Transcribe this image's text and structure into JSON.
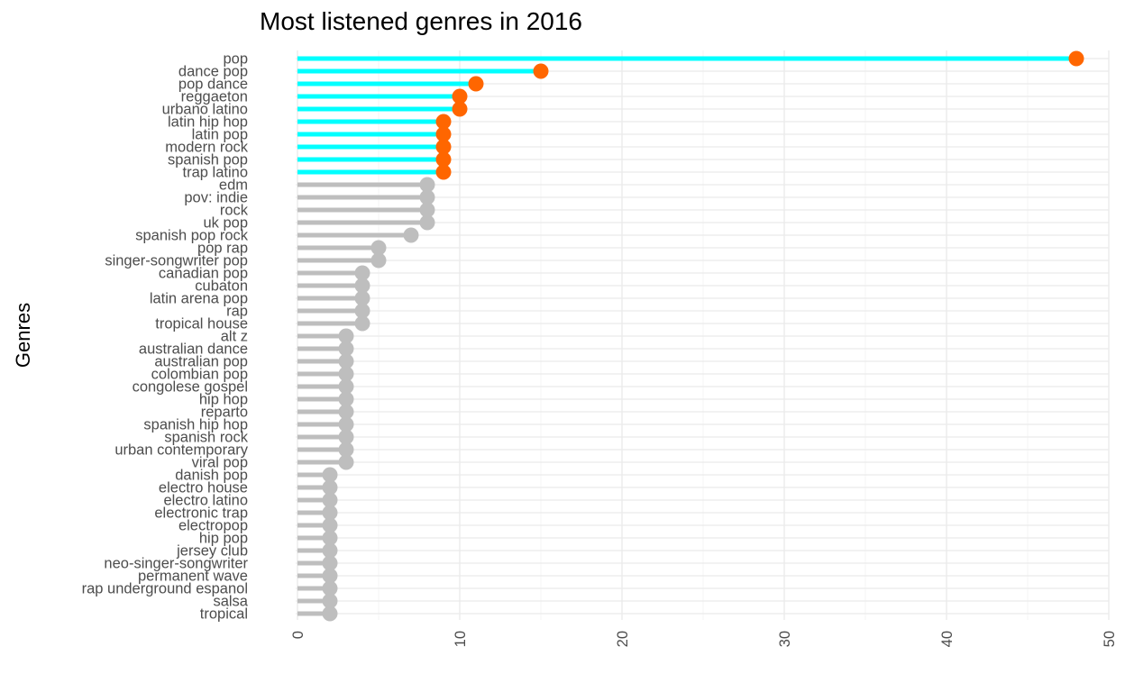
{
  "chart_data": {
    "type": "lollipop",
    "title": "Most listened genres in 2016",
    "xlabel": "",
    "ylabel": "Genres",
    "xlim": [
      0,
      50
    ],
    "x_ticks": [
      "0",
      "10",
      "20",
      "30",
      "40",
      "50"
    ],
    "grid": true,
    "highlight_top_n": 10,
    "colors": {
      "highlight_stem": "#00FFFF",
      "highlight_point": "#FF6600",
      "base_stem": "#BEBEBE",
      "base_point": "#BEBEBE",
      "grid_major": "#EBEBEB",
      "grid_minor": "#F4F4F4",
      "tick_text": "#4D4D4D"
    },
    "categories": [
      "pop",
      "dance pop",
      "pop dance",
      "reggaeton",
      "urbano latino",
      "latin hip hop",
      "latin pop",
      "modern rock",
      "spanish pop",
      "trap latino",
      "edm",
      "pov: indie",
      "rock",
      "uk pop",
      "spanish pop rock",
      "pop rap",
      "singer-songwriter pop",
      "canadian pop",
      "cubaton",
      "latin arena pop",
      "rap",
      "tropical house",
      "alt z",
      "australian dance",
      "australian pop",
      "colombian pop",
      "congolese gospel",
      "hip hop",
      "reparto",
      "spanish hip hop",
      "spanish rock",
      "urban contemporary",
      "viral pop",
      "danish pop",
      "electro house",
      "electro latino",
      "electronic trap",
      "electropop",
      "hip pop",
      "jersey club",
      "neo-singer-songwriter",
      "permanent wave",
      "rap underground espanol",
      "salsa",
      "tropical"
    ],
    "values": [
      48,
      15,
      11,
      10,
      10,
      9,
      9,
      9,
      9,
      9,
      8,
      8,
      8,
      8,
      7,
      5,
      5,
      4,
      4,
      4,
      4,
      4,
      3,
      3,
      3,
      3,
      3,
      3,
      3,
      3,
      3,
      3,
      3,
      2,
      2,
      2,
      2,
      2,
      2,
      2,
      2,
      2,
      2,
      2,
      2
    ]
  }
}
